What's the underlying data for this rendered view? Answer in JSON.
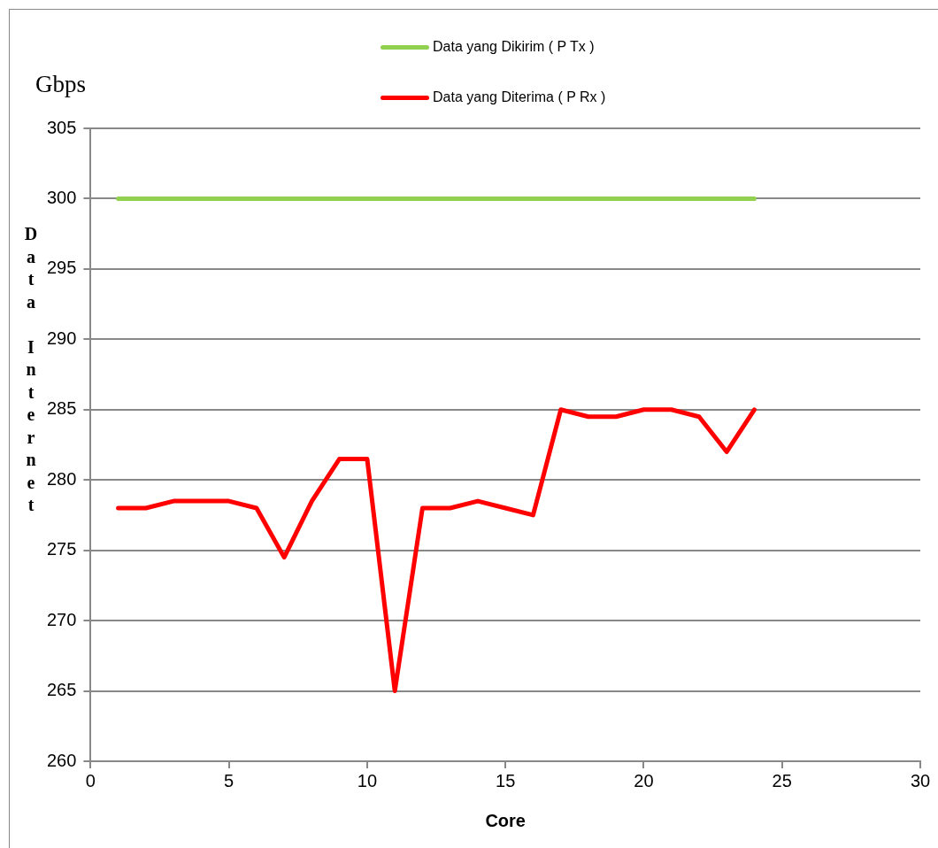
{
  "chart_data": {
    "type": "line",
    "xlabel": "Core",
    "ylabel": "Data Internet",
    "annotations": [
      "Gbps"
    ],
    "x": [
      1,
      2,
      3,
      4,
      5,
      6,
      7,
      8,
      9,
      10,
      11,
      12,
      13,
      14,
      15,
      16,
      17,
      18,
      19,
      20,
      21,
      22,
      23,
      24
    ],
    "series": [
      {
        "name": "Data yang Dikirim ( P Tx )",
        "color": "#92d050",
        "values": [
          300,
          300,
          300,
          300,
          300,
          300,
          300,
          300,
          300,
          300,
          300,
          300,
          300,
          300,
          300,
          300,
          300,
          300,
          300,
          300,
          300,
          300,
          300,
          300
        ]
      },
      {
        "name": "Data yang Diterima ( P Rx )",
        "color": "#ff0000",
        "values": [
          278,
          278,
          278.5,
          278.5,
          278.5,
          278,
          274.5,
          278.5,
          281.5,
          281.5,
          265,
          278,
          278,
          278.5,
          278,
          277.5,
          285,
          284.5,
          284.5,
          285,
          285,
          284.5,
          282,
          285
        ]
      }
    ],
    "xlim": [
      0,
      30
    ],
    "xticks": [
      0,
      5,
      10,
      15,
      20,
      25,
      30
    ],
    "ylim": [
      260,
      305
    ],
    "yticks": [
      260,
      265,
      270,
      275,
      280,
      285,
      290,
      295,
      300,
      305
    ],
    "grid": "y",
    "legend": "top",
    "marker": "none",
    "line_style": "solid"
  }
}
